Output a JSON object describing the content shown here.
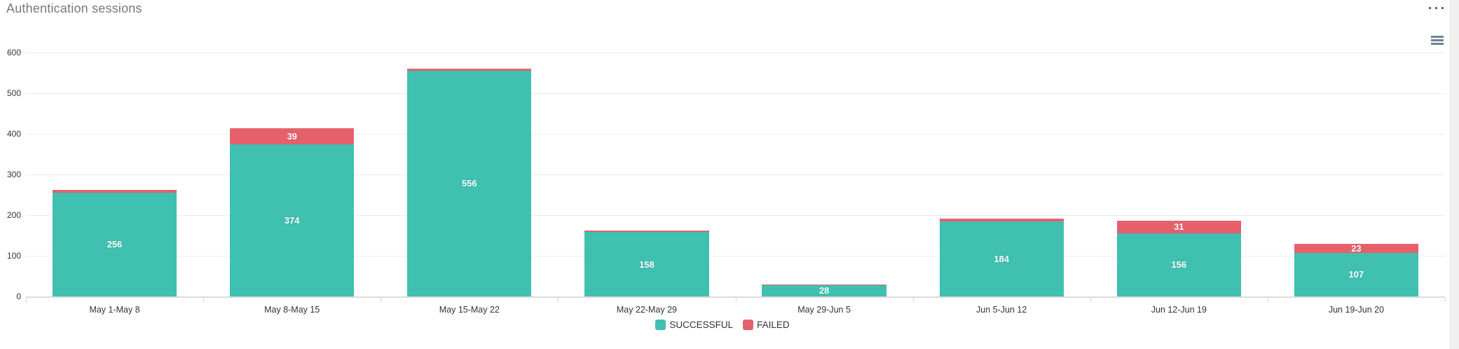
{
  "header": {
    "title": "Authentication sessions"
  },
  "icons": {
    "more_options": "ellipsis-horizontal",
    "chart_context_menu": "hamburger-menu"
  },
  "colors": {
    "successful": "#3fc0b0",
    "failed": "#e6606c",
    "gridline": "#ececec",
    "axis": "#dbdbdb",
    "title_text": "#75797c",
    "label_text": "#333333"
  },
  "chart_data": {
    "type": "bar",
    "stacked": true,
    "title": "Authentication sessions",
    "categories": [
      "May 1-May 8",
      "May 8-May 15",
      "May 15-May 22",
      "May 22-May 29",
      "May 29-Jun 5",
      "Jun 5-Jun 12",
      "Jun 12-Jun 19",
      "Jun 19-Jun 20"
    ],
    "series": [
      {
        "name": "SUCCESSFUL",
        "color": "#3fc0b0",
        "values": [
          256,
          374,
          556,
          158,
          28,
          184,
          156,
          107
        ],
        "labels_visible": [
          true,
          true,
          true,
          true,
          true,
          true,
          true,
          true
        ]
      },
      {
        "name": "FAILED",
        "color": "#e6606c",
        "values": [
          6,
          39,
          5,
          4,
          2,
          7,
          31,
          23
        ],
        "labels_visible": [
          false,
          true,
          false,
          false,
          false,
          false,
          true,
          true
        ]
      }
    ],
    "xlabel": "",
    "ylabel": "",
    "ylim": [
      0,
      600
    ],
    "yticks": [
      0,
      100,
      200,
      300,
      400,
      500,
      600
    ],
    "grid": "horizontal-only",
    "legend_position": "bottom-center",
    "legend": [
      "SUCCESSFUL",
      "FAILED"
    ]
  }
}
